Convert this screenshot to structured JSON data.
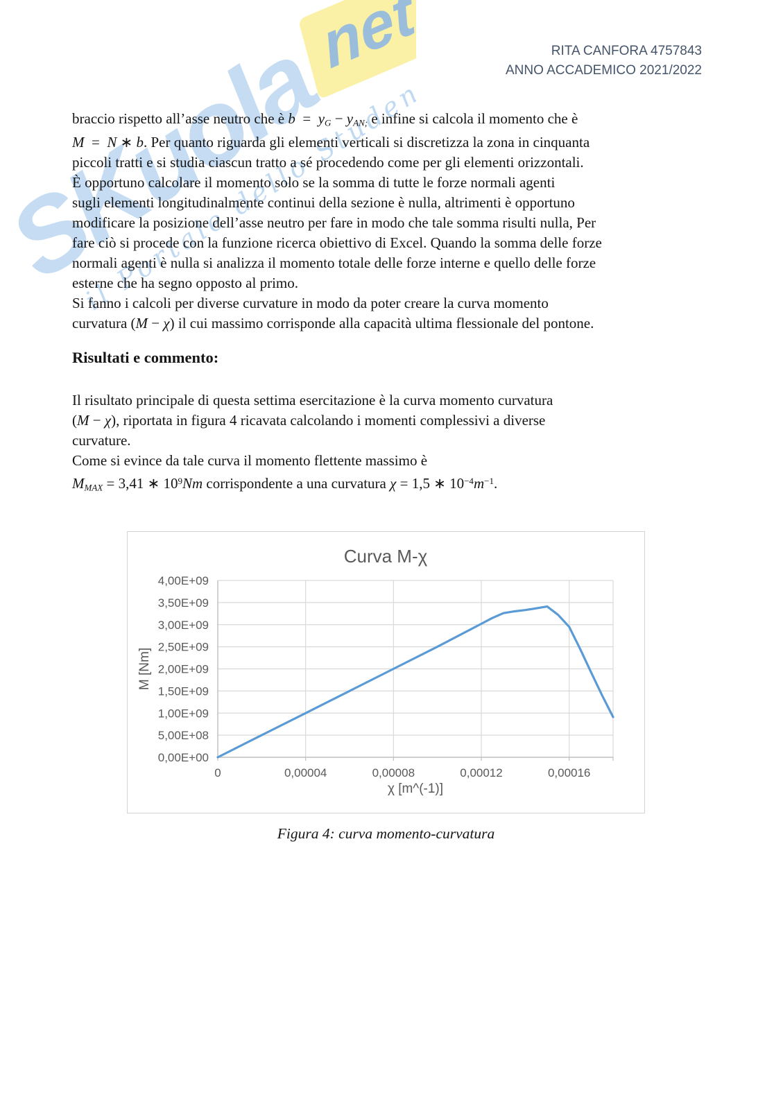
{
  "page": {
    "header_line1": "RITA CANFORA 4757843",
    "header_line2": "ANNO ACCADEMICO 2021/2022"
  },
  "watermark": {
    "brand_main": "SKuola",
    "brand_suffix": "net",
    "tagline": "il Portale dello Studente",
    "colors": {
      "blue": "#8cbae8",
      "yellow": "#fbf09e"
    }
  },
  "body": {
    "paragraph1_lines": [
      "braccio rispetto all’asse neutro che è <i>b</i>&nbsp;&nbsp;=&nbsp;&nbsp;<i>y<sub>G</sub></i>&nbsp;−&nbsp;<i>y<sub>AN;</sub></i>&nbsp;e infine si calcola il momento che è",
      "<i>M</i>&nbsp;&nbsp;=&nbsp;&nbsp;<i>N</i>&nbsp;∗&nbsp;<i>b</i>. Per quanto riguarda gli elementi verticali si discretizza la zona in cinquanta",
      "piccoli tratti e si studia ciascun tratto a sé procedendo come per gli elementi orizzontali.",
      "È opportuno calcolare il momento solo se la somma di tutte le forze normali agenti",
      "sugli elementi longitudinalmente continui della sezione è nulla, altrimenti è opportuno",
      "modificare la posizione dell’asse neutro per fare in modo che tale somma risulti nulla, Per",
      "fare ciò si procede con la funzione ricerca obiettivo di Excel. Quando la somma delle forze",
      "normali agenti è nulla si analizza il momento totale delle forze interne e quello delle forze",
      "esterne che ha segno opposto al primo.",
      "Si fanno i calcoli per diverse curvature in modo da poter creare la curva momento",
      "curvatura (<i>M</i>&nbsp;−&nbsp;<i>χ</i>) il cui massimo corrisponde alla capacità ultima flessionale del pontone."
    ],
    "section_heading": "Risultati e commento:",
    "paragraph2_lines": [
      "Il risultato principale di questa settima esercitazione è la curva momento curvatura",
      "(<i>M</i>&nbsp;−&nbsp;<i>χ</i>), riportata in figura 4 ricavata calcolando i momenti complessivi a diverse",
      "curvature.",
      "Come si evince da tale curva il momento flettente massimo è",
      "<i>M<sub>MAX</sub></i>&nbsp;=&nbsp;3,41&nbsp;∗&nbsp;10<sup>9</sup><i>Nm</i> corrispondente a una curvatura <i>χ</i>&nbsp;=&nbsp;1,5&nbsp;∗&nbsp;10<sup>−4</sup><i>m</i><sup>−1</sup>."
    ]
  },
  "figure": {
    "caption": "Figura 4: curva momento-curvatura"
  },
  "chart_data": {
    "type": "line",
    "title": "Curva M-χ",
    "xlabel": "χ [m^(-1)]",
    "ylabel": "M [Nm]",
    "xlim": [
      0,
      0.00018
    ],
    "ylim": [
      0,
      4000000000.0
    ],
    "grid": true,
    "legend": "none",
    "line_color": "#5B9BD5",
    "x_tick_values": [
      0,
      4e-05,
      8e-05,
      0.00012,
      0.00016
    ],
    "x_tick_labels": [
      "0",
      "0,00004",
      "0,00008",
      "0,00012",
      "0,00016"
    ],
    "y_tick_values": [
      0,
      500000000.0,
      1000000000.0,
      1500000000.0,
      2000000000.0,
      2500000000.0,
      3000000000.0,
      3500000000.0,
      4000000000.0
    ],
    "y_tick_labels": [
      "0,00E+00",
      "5,00E+08",
      "1,00E+09",
      "1,50E+09",
      "2,00E+09",
      "2,50E+09",
      "3,00E+09",
      "3,50E+09",
      "4,00E+09"
    ],
    "series": [
      {
        "name": "Curva momento-curvatura",
        "x": [
          0,
          2e-05,
          4e-05,
          6e-05,
          8e-05,
          0.0001,
          0.00011,
          0.00012,
          0.000125,
          0.00013,
          0.000135,
          0.00014,
          0.000145,
          0.00015,
          0.000155,
          0.00016,
          0.000165,
          0.00017,
          0.000175,
          0.00018
        ],
        "y": [
          0,
          500000000.0,
          1000000000.0,
          1500000000.0,
          2000000000.0,
          2500000000.0,
          2760000000.0,
          3020000000.0,
          3150000000.0,
          3260000000.0,
          3300000000.0,
          3330000000.0,
          3370000000.0,
          3410000000.0,
          3220000000.0,
          2950000000.0,
          2450000000.0,
          1920000000.0,
          1400000000.0,
          910000000.0
        ]
      }
    ],
    "max_point": {
      "x": 0.00015,
      "y": 3410000000.0
    }
  }
}
